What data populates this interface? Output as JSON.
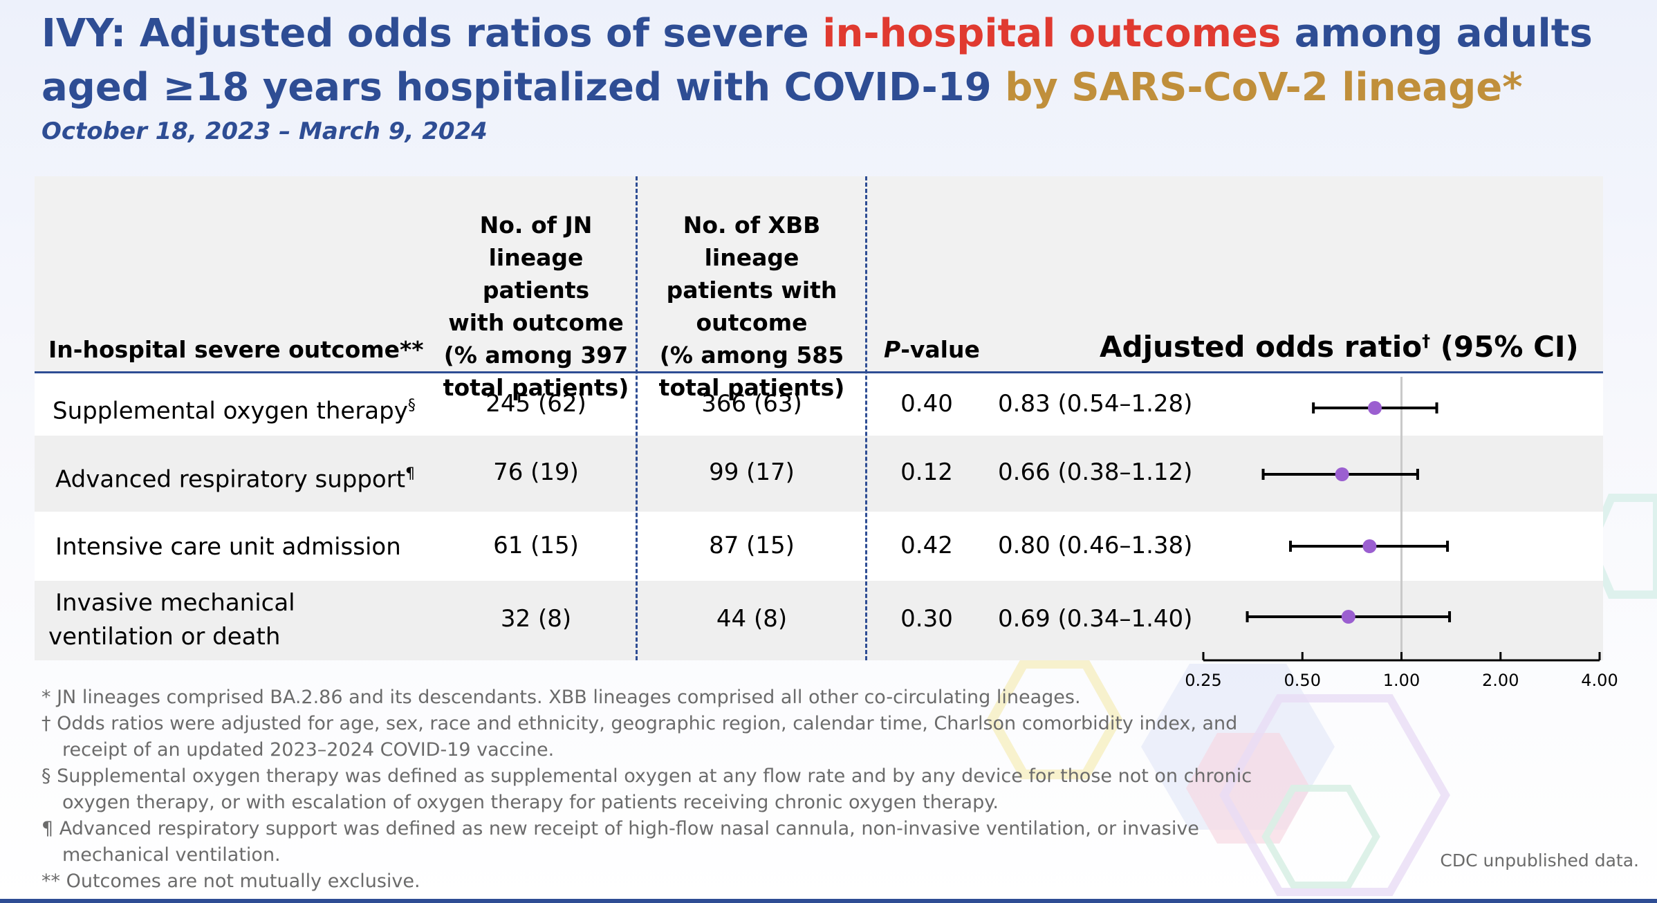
{
  "title": {
    "part1": "IVY: Adjusted odds ratios of severe ",
    "part2": "in-hospital outcomes",
    "part3": " among adults aged ≥18 years hospitalized with COVID-19 ",
    "part4": "by SARS-CoV-2 lineage*"
  },
  "subtitle": "October 18, 2023 – March 9, 2024",
  "colors": {
    "title_blue": "#2e4d94",
    "red": "#e03a30",
    "gold": "#c08f3b",
    "point": "#9b5fd0"
  },
  "table": {
    "headers": {
      "outcome": "In-hospital severe outcome**",
      "jn_lines": [
        "No. of JN",
        "lineage patients",
        "with outcome",
        "(% among 397",
        "total patients)"
      ],
      "xbb_lines": [
        "No. of XBB lineage",
        "patients with",
        "outcome",
        "(% among 585",
        "total patients)"
      ],
      "p_italic": "P",
      "p_rest": "-value",
      "aor_main": "Adjusted odds ratio",
      "aor_sup": "†",
      "aor_tail": " (95% CI)"
    },
    "rows": [
      {
        "label": "Supplemental oxygen therapy",
        "label_sup": "§",
        "jn": "245 (62)",
        "xbb": "366 (63)",
        "p": "0.40",
        "aor_text": "0.83 (0.54–1.28)"
      },
      {
        "label": "Advanced respiratory support",
        "label_sup": "¶",
        "jn": "76 (19)",
        "xbb": "99 (17)",
        "p": "0.12",
        "aor_text": "0.66 (0.38–1.12)"
      },
      {
        "label": "Intensive care unit admission",
        "label_sup": "",
        "jn": "61 (15)",
        "xbb": "87 (15)",
        "p": "0.42",
        "aor_text": "0.80 (0.46–1.38)"
      },
      {
        "label_line1": "Invasive mechanical",
        "label_line2": "ventilation or death",
        "label_sup": "",
        "jn": "32 (8)",
        "xbb": "44 (8)",
        "p": "0.30",
        "aor_text": "0.69 (0.34–1.40)"
      }
    ]
  },
  "chart_data": {
    "type": "forest",
    "scale": "log",
    "xlim": [
      0.25,
      4.0
    ],
    "ticks": [
      "0.25",
      "0.50",
      "1.00",
      "2.00",
      "4.00"
    ],
    "reference_line": 1.0,
    "categories": [
      "Supplemental oxygen therapy",
      "Advanced respiratory support",
      "Intensive care unit admission",
      "Invasive mechanical ventilation or death"
    ],
    "estimates": [
      0.83,
      0.66,
      0.8,
      0.69
    ],
    "ci_lower": [
      0.54,
      0.38,
      0.46,
      0.34
    ],
    "ci_upper": [
      1.28,
      1.12,
      1.38,
      1.4
    ]
  },
  "footnotes": [
    "* JN lineages comprised BA.2.86 and its descendants. XBB lineages comprised all other co-circulating lineages.",
    "† Odds ratios were adjusted for age, sex, race and ethnicity, geographic region, calendar time, Charlson comorbidity index, and",
    "receipt of an updated 2023–2024 COVID-19 vaccine.",
    "§ Supplemental oxygen therapy was defined as supplemental oxygen at any flow rate and by any device for those not on chronic",
    "oxygen therapy, or with escalation of oxygen therapy for patients receiving chronic oxygen therapy.",
    "¶ Advanced respiratory support was defined as new receipt of high-flow nasal cannula, non-invasive ventilation, or invasive",
    "mechanical ventilation.",
    "** Outcomes are not mutually exclusive."
  ],
  "credit": "CDC unpublished data."
}
